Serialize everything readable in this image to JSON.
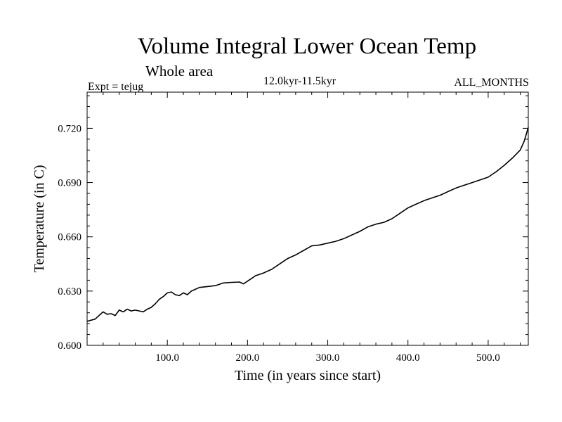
{
  "header": {
    "title": "Volume Integral Lower Ocean Temp",
    "subtitle": "Whole area",
    "experiment": "Expt = tejug",
    "period": "12.0kyr-11.5kyr",
    "months": "ALL_MONTHS"
  },
  "chart_data": {
    "type": "line",
    "title": "Volume Integral Lower Ocean Temp",
    "xlabel": "Time (in years since start)",
    "ylabel": "Temperature (in C)",
    "xlim": [
      0,
      550
    ],
    "ylim": [
      0.6,
      0.74
    ],
    "x_ticks": [
      100,
      200,
      300,
      400,
      500
    ],
    "x_tick_labels": [
      "100.0",
      "200.0",
      "300.0",
      "400.0",
      "500.0"
    ],
    "y_ticks": [
      0.6,
      0.63,
      0.66,
      0.69,
      0.72
    ],
    "y_tick_labels": [
      "0.600",
      "0.630",
      "0.660",
      "0.690",
      "0.720"
    ],
    "grid": false,
    "line_color": "#000000",
    "series": [
      {
        "name": "tejug",
        "x": [
          0,
          10,
          20,
          25,
          30,
          35,
          40,
          45,
          50,
          55,
          60,
          70,
          75,
          80,
          85,
          90,
          95,
          100,
          105,
          110,
          115,
          120,
          125,
          130,
          140,
          150,
          160,
          170,
          180,
          190,
          195,
          200,
          205,
          210,
          220,
          230,
          240,
          250,
          260,
          270,
          280,
          290,
          300,
          310,
          320,
          330,
          340,
          350,
          360,
          370,
          380,
          390,
          400,
          410,
          420,
          430,
          440,
          450,
          460,
          470,
          480,
          490,
          500,
          510,
          520,
          530,
          540,
          545,
          550
        ],
        "values": [
          0.6133,
          0.6145,
          0.6185,
          0.6172,
          0.6175,
          0.6165,
          0.6195,
          0.6185,
          0.62,
          0.619,
          0.6195,
          0.6185,
          0.62,
          0.621,
          0.623,
          0.6255,
          0.627,
          0.629,
          0.6295,
          0.628,
          0.6275,
          0.629,
          0.628,
          0.63,
          0.632,
          0.6325,
          0.633,
          0.6345,
          0.6348,
          0.635,
          0.634,
          0.6355,
          0.637,
          0.6385,
          0.64,
          0.642,
          0.645,
          0.648,
          0.65,
          0.6525,
          0.655,
          0.6555,
          0.6565,
          0.6575,
          0.659,
          0.661,
          0.663,
          0.6655,
          0.667,
          0.668,
          0.67,
          0.673,
          0.676,
          0.678,
          0.68,
          0.6815,
          0.683,
          0.685,
          0.687,
          0.6885,
          0.69,
          0.6915,
          0.693,
          0.696,
          0.6995,
          0.7035,
          0.708,
          0.713,
          0.7205
        ]
      }
    ]
  }
}
